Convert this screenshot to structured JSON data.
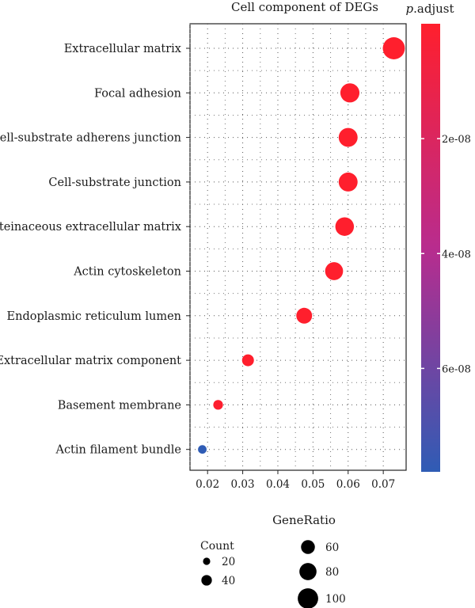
{
  "chart_data": {
    "type": "scatter",
    "title": "Cell component of DEGs",
    "xlabel": "GeneRatio",
    "ylabel": "",
    "xlim": [
      0.015,
      0.0765
    ],
    "x_ticks": [
      "0.02",
      "0.03",
      "0.04",
      "0.05",
      "0.06",
      "0.07"
    ],
    "x_tick_values": [
      0.02,
      0.03,
      0.04,
      0.05,
      0.06,
      0.07
    ],
    "grid": true,
    "categories": [
      "Extracellular matrix",
      "Focal adhesion",
      "Cell-substrate adherens junction",
      "Cell-substrate junction",
      "Proteinaceous extracellular matrix",
      "Actin cytoskeleton",
      "Endoplasmic reticulum lumen",
      "Extracellular matrix component",
      "Basement membrane",
      "Actin filament bundle"
    ],
    "points": [
      {
        "term": "Extracellular matrix",
        "gene_ratio": 0.073,
        "count": 110,
        "p_adjust": 1e-12
      },
      {
        "term": "Focal adhesion",
        "gene_ratio": 0.0605,
        "count": 92,
        "p_adjust": 1e-11
      },
      {
        "term": "Cell-substrate adherens junction",
        "gene_ratio": 0.06,
        "count": 91,
        "p_adjust": 1e-11
      },
      {
        "term": "Cell-substrate junction",
        "gene_ratio": 0.06,
        "count": 91,
        "p_adjust": 1e-11
      },
      {
        "term": "Proteinaceous extracellular matrix",
        "gene_ratio": 0.059,
        "count": 89,
        "p_adjust": 1e-10
      },
      {
        "term": "Actin cytoskeleton",
        "gene_ratio": 0.056,
        "count": 85,
        "p_adjust": 1e-10
      },
      {
        "term": "Endoplasmic reticulum lumen",
        "gene_ratio": 0.0475,
        "count": 72,
        "p_adjust": 1e-10
      },
      {
        "term": "Extracellular matrix component",
        "gene_ratio": 0.0315,
        "count": 48,
        "p_adjust": 1e-10
      },
      {
        "term": "Basement membrane",
        "gene_ratio": 0.023,
        "count": 35,
        "p_adjust": 1e-09
      },
      {
        "term": "Actin filament bundle",
        "gene_ratio": 0.0185,
        "count": 28,
        "p_adjust": 7.8e-08
      }
    ],
    "color_legend": {
      "title_italic": "p",
      "title_rest": ".adjust",
      "ticks": [
        "2e-08",
        "4e-08",
        "6e-08"
      ],
      "tick_values": [
        2e-08,
        4e-08,
        6e-08
      ],
      "range": [
        0,
        7.8e-08
      ],
      "color_low": "#ff1f2d",
      "color_mid": "#b82c8e",
      "color_high": "#2f5cb5"
    },
    "size_legend": {
      "title": "Count",
      "values": [
        20,
        40,
        60,
        80,
        100
      ],
      "labels": [
        "20",
        "40",
        "60",
        "80",
        "100"
      ]
    }
  }
}
